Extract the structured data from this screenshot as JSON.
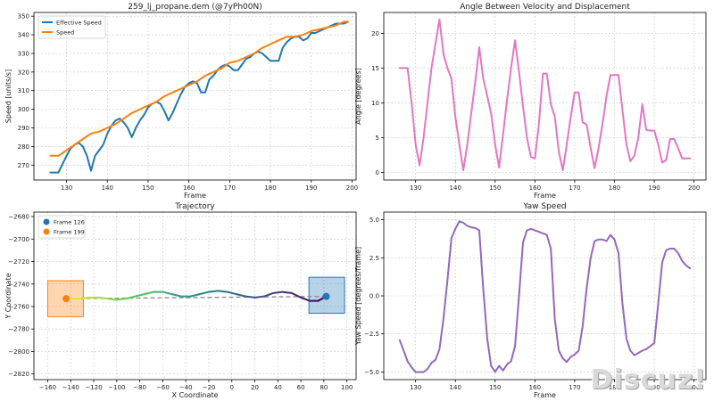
{
  "watermark": "Discuz!",
  "chart_data": [
    {
      "id": "speed",
      "type": "line",
      "title": "259_lj_propane.dem (@7yPh00N)",
      "xlabel": "Frame",
      "ylabel": "Speed [units/s]",
      "xlim": [
        122,
        201
      ],
      "ylim": [
        262,
        352
      ],
      "xticks": [
        130,
        140,
        150,
        160,
        170,
        180,
        190,
        200
      ],
      "yticks": [
        270,
        280,
        290,
        300,
        310,
        320,
        330,
        340,
        350
      ],
      "grid": true,
      "legend": "top-left",
      "series": [
        {
          "name": "Effective Speed",
          "color": "#1f77b4",
          "x": [
            126,
            128,
            130,
            131,
            132,
            133,
            134,
            135,
            136,
            137,
            138,
            139,
            140,
            141,
            142,
            143,
            144,
            145,
            146,
            147,
            148,
            149,
            150,
            151,
            152,
            153,
            154,
            155,
            156,
            157,
            158,
            159,
            160,
            161,
            162,
            163,
            164,
            165,
            166,
            167,
            168,
            169,
            170,
            171,
            172,
            173,
            174,
            175,
            176,
            177,
            178,
            179,
            180,
            181,
            182,
            183,
            184,
            185,
            186,
            187,
            188,
            189,
            190,
            191,
            192,
            193,
            194,
            195,
            196,
            197,
            198,
            199
          ],
          "values": [
            266,
            266,
            275,
            279,
            281,
            282,
            280,
            275,
            267,
            275,
            278,
            281,
            287,
            291,
            294,
            295,
            293,
            290,
            285,
            290,
            294,
            297,
            301,
            303,
            304,
            303,
            299,
            294,
            298,
            303,
            308,
            312,
            314,
            315,
            314,
            309,
            309,
            316,
            318,
            321,
            323,
            324,
            323,
            321,
            321,
            324,
            327,
            328,
            330,
            331,
            330,
            328,
            326,
            326,
            326,
            333,
            336,
            338,
            339,
            339,
            337,
            338,
            341,
            341,
            342,
            343,
            344,
            345,
            346,
            346,
            346,
            347
          ]
        },
        {
          "name": "Speed",
          "color": "#ff7f0e",
          "x": [
            126,
            128,
            130,
            132,
            134,
            136,
            138,
            140,
            142,
            144,
            146,
            148,
            150,
            152,
            154,
            156,
            158,
            160,
            162,
            164,
            166,
            168,
            170,
            172,
            174,
            176,
            178,
            180,
            182,
            184,
            186,
            188,
            190,
            192,
            194,
            196,
            198,
            199
          ],
          "values": [
            275,
            275,
            278,
            281,
            284,
            287,
            288,
            290,
            292,
            295,
            298,
            300,
            302,
            304,
            307,
            309,
            311,
            313,
            315,
            318,
            320,
            322,
            325,
            326,
            328,
            330,
            333,
            335,
            337,
            339,
            339,
            340,
            342,
            343,
            344,
            345,
            347,
            347
          ]
        }
      ]
    },
    {
      "id": "angle",
      "type": "line",
      "title": "Angle Between Velocity and Displacement",
      "xlabel": "Frame",
      "ylabel": "Angle [degrees]",
      "xlim": [
        122,
        203
      ],
      "ylim": [
        -1.1,
        23
      ],
      "xticks": [
        130,
        140,
        150,
        160,
        170,
        180,
        190,
        200
      ],
      "yticks": [
        0,
        5,
        10,
        15,
        20
      ],
      "grid": true,
      "series": [
        {
          "name": "Angle",
          "color": "#e377c2",
          "x": [
            126,
            127,
            128,
            129,
            130,
            131,
            132,
            133,
            134,
            135,
            136,
            137,
            138,
            139,
            140,
            141,
            142,
            143,
            144,
            145,
            146,
            147,
            148,
            149,
            150,
            151,
            152,
            153,
            154,
            155,
            156,
            157,
            158,
            159,
            160,
            161,
            162,
            163,
            164,
            165,
            166,
            167,
            168,
            169,
            170,
            171,
            172,
            173,
            174,
            175,
            176,
            177,
            178,
            179,
            180,
            181,
            182,
            183,
            184,
            185,
            186,
            187,
            188,
            189,
            190,
            191,
            192,
            193,
            194,
            195,
            196,
            197,
            198,
            199
          ],
          "values": [
            15,
            15,
            15,
            10,
            4,
            1,
            5,
            10,
            15,
            18.5,
            22,
            17,
            15,
            13.5,
            8,
            4,
            0.3,
            4,
            8.5,
            13,
            18,
            13.5,
            11,
            8.5,
            4,
            0.7,
            5.5,
            10.5,
            15,
            19,
            14.5,
            9.5,
            5,
            2.2,
            2,
            7,
            14.2,
            14.2,
            9.8,
            8,
            3,
            0.3,
            4,
            8,
            11.5,
            11.5,
            7.2,
            6.9,
            3.5,
            0.6,
            3.5,
            7,
            11,
            14,
            14,
            14,
            9,
            4,
            1.6,
            2.4,
            5,
            9.8,
            6.1,
            6,
            6,
            4,
            1.4,
            1.8,
            4.8,
            4.8,
            3.5,
            2,
            2,
            2
          ]
        }
      ]
    },
    {
      "id": "trajectory",
      "type": "scatter",
      "title": "Trajectory",
      "xlabel": "X Coordinate",
      "ylabel": "Y Coordinate",
      "xlim": [
        -172,
        108
      ],
      "ylim": [
        -2825,
        -2676
      ],
      "xticks": [
        -160,
        -140,
        -120,
        -100,
        -80,
        -60,
        -40,
        -20,
        0,
        20,
        40,
        60,
        80,
        100
      ],
      "yticks": [
        -2680,
        -2700,
        -2720,
        -2740,
        -2760,
        -2780,
        -2800,
        -2820
      ],
      "grid": true,
      "legend": "top-left",
      "legend_items": [
        {
          "name": "Frame 126",
          "color": "#1f77b4"
        },
        {
          "name": "Frame 199",
          "color": "#ff7f0e"
        }
      ],
      "start_box": {
        "x0": 67,
        "x1": 98,
        "y0": -2766,
        "y1": -2734,
        "color": "#1f77b4"
      },
      "end_box": {
        "x0": -160,
        "x1": -129,
        "y0": -2769,
        "y1": -2737,
        "color": "#ff7f0e"
      },
      "reference_line": {
        "x0": 82,
        "y0": -2751,
        "x1": -144,
        "y1": -2753
      },
      "path": {
        "x": [
          82,
          75,
          68,
          60,
          52,
          44,
          36,
          28,
          20,
          12,
          4,
          -4,
          -12,
          -20,
          -28,
          -36,
          -44,
          -52,
          -60,
          -68,
          -76,
          -84,
          -92,
          -100,
          -108,
          -116,
          -124,
          -132,
          -140,
          -144
        ],
        "y": [
          -2751,
          -2755,
          -2755,
          -2752,
          -2748,
          -2747,
          -2748,
          -2751,
          -2752,
          -2751,
          -2749,
          -2747,
          -2746,
          -2747,
          -2749,
          -2751,
          -2751,
          -2749,
          -2747,
          -2747,
          -2749,
          -2751,
          -2753,
          -2754,
          -2753,
          -2752,
          -2752,
          -2753,
          -2753,
          -2753
        ]
      },
      "start_point": {
        "label": "Frame 126",
        "x": 82,
        "y": -2751
      },
      "end_point": {
        "label": "Frame 199",
        "x": -144,
        "y": -2753
      }
    },
    {
      "id": "yaw",
      "type": "line",
      "title": "Yaw Speed",
      "xlabel": "Frame",
      "ylabel": "Yaw Speed [degrees/frame]",
      "xlim": [
        122,
        203
      ],
      "ylim": [
        -5.5,
        5.5
      ],
      "xticks": [
        130,
        140,
        150,
        160,
        170,
        180,
        190,
        200
      ],
      "yticks": [
        -5.0,
        -2.5,
        0.0,
        2.5,
        5.0
      ],
      "grid": true,
      "series": [
        {
          "name": "Yaw Speed",
          "color": "#9467bd",
          "x": [
            126,
            127,
            128,
            129,
            130,
            131,
            132,
            133,
            134,
            135,
            136,
            137,
            138,
            139,
            140,
            141,
            142,
            143,
            144,
            145,
            146,
            147,
            148,
            149,
            150,
            151,
            152,
            153,
            154,
            155,
            156,
            157,
            158,
            159,
            160,
            161,
            162,
            163,
            164,
            165,
            166,
            167,
            168,
            169,
            170,
            171,
            172,
            173,
            174,
            175,
            176,
            177,
            178,
            179,
            180,
            181,
            182,
            183,
            184,
            185,
            186,
            187,
            188,
            189,
            190,
            191,
            192,
            193,
            194,
            195,
            196,
            197,
            198,
            199
          ],
          "values": [
            -2.9,
            -3.6,
            -4.3,
            -4.7,
            -5.0,
            -5.0,
            -5.0,
            -4.8,
            -4.4,
            -4.2,
            -3.5,
            -1.5,
            1.0,
            3.8,
            4.4,
            4.9,
            4.8,
            4.6,
            4.5,
            4.45,
            4.3,
            0.5,
            -2.8,
            -4.6,
            -5.0,
            -4.6,
            -4.9,
            -4.5,
            -4.3,
            -3.3,
            0.0,
            3.5,
            4.3,
            4.4,
            4.3,
            4.2,
            4.1,
            4.0,
            3.1,
            -1.5,
            -3.6,
            -4.1,
            -4.35,
            -4.0,
            -3.85,
            -3.6,
            -2.0,
            0.5,
            2.5,
            3.6,
            3.7,
            3.7,
            3.6,
            4.0,
            3.7,
            2.8,
            -0.5,
            -2.8,
            -3.6,
            -3.9,
            -3.75,
            -3.6,
            -3.5,
            -3.3,
            -3.1,
            -0.5,
            2.2,
            3.0,
            3.1,
            3.1,
            2.8,
            2.3,
            2.0,
            1.8
          ]
        }
      ]
    }
  ]
}
